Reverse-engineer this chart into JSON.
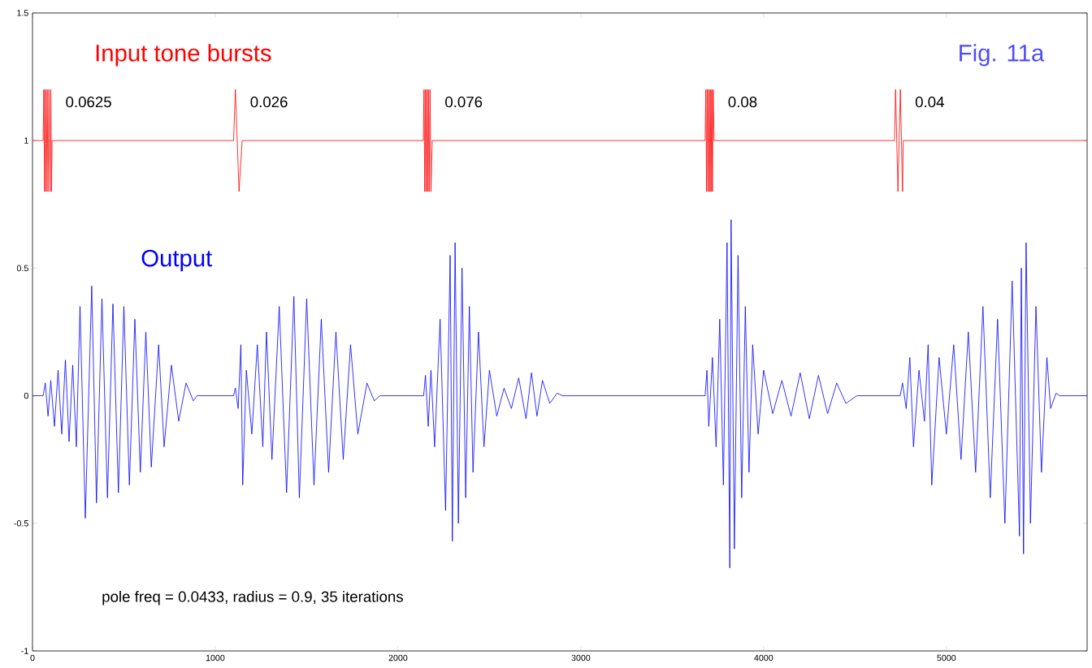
{
  "chart_data": {
    "type": "line",
    "title": "Fig. 11a",
    "xlim": [
      0,
      5770
    ],
    "ylim": [
      -1,
      1.5
    ],
    "xticks": [
      0,
      1000,
      2000,
      3000,
      4000,
      5000
    ],
    "yticks": [
      -1,
      -0.5,
      0,
      0.5,
      1,
      1.5
    ],
    "grid": false,
    "series": [
      {
        "name": "Input tone bursts",
        "color": "#ff0000",
        "x": [
          0,
          58,
          62,
          66,
          70,
          75,
          80,
          85,
          90,
          96,
          100,
          104,
          107,
          1100,
          1110,
          1130,
          1147,
          2138,
          2142,
          2146,
          2150,
          2154,
          2158,
          2162,
          2166,
          2170,
          2175,
          2180,
          2187,
          3680,
          3684,
          3688,
          3692,
          3696,
          3700,
          3704,
          3708,
          3712,
          3716,
          3720,
          3724,
          3729,
          4716,
          4722,
          4735,
          4748,
          4760,
          4764,
          5770
        ],
        "values": [
          1,
          1,
          1.2,
          0.8,
          1.2,
          0.8,
          1.2,
          0.8,
          1.2,
          0.8,
          1.2,
          0.8,
          1,
          1,
          1.2,
          0.8,
          1,
          1,
          1.2,
          0.8,
          1.2,
          0.8,
          1.2,
          0.8,
          1.2,
          0.8,
          1.2,
          0.8,
          1,
          1,
          1.2,
          0.8,
          1.2,
          0.8,
          1.2,
          0.8,
          1.2,
          0.8,
          1.2,
          0.8,
          1.2,
          1,
          1,
          1.2,
          0.8,
          1.2,
          0.8,
          1,
          1
        ]
      },
      {
        "name": "Output",
        "color": "#0000ff",
        "x": [
          0,
          58,
          70,
          85,
          100,
          120,
          140,
          160,
          180,
          200,
          220,
          240,
          260,
          289,
          324,
          350,
          380,
          410,
          440,
          470,
          500,
          530,
          560,
          590,
          620,
          650,
          690,
          720,
          760,
          800,
          840,
          880,
          900,
          1100,
          1110,
          1125,
          1140,
          1150,
          1170,
          1200,
          1230,
          1260,
          1280,
          1310,
          1350,
          1390,
          1430,
          1460,
          1500,
          1540,
          1580,
          1620,
          1660,
          1700,
          1740,
          1780,
          1830,
          1870,
          1900,
          2140,
          2150,
          2165,
          2180,
          2200,
          2230,
          2260,
          2285,
          2297,
          2312,
          2330,
          2350,
          2370,
          2390,
          2410,
          2440,
          2470,
          2500,
          2540,
          2580,
          2620,
          2660,
          2700,
          2730,
          2760,
          2790,
          2830,
          2870,
          2900,
          3680,
          3690,
          3700,
          3720,
          3740,
          3760,
          3780,
          3800,
          3815,
          3822,
          3840,
          3860,
          3880,
          3900,
          3920,
          3940,
          3970,
          4000,
          4050,
          4100,
          4150,
          4200,
          4250,
          4300,
          4350,
          4400,
          4450,
          4510,
          4747,
          4760,
          4780,
          4800,
          4820,
          4850,
          4880,
          4900,
          4920,
          4960,
          5000,
          5040,
          5080,
          5120,
          5160,
          5200,
          5240,
          5280,
          5320,
          5360,
          5400,
          5410,
          5422,
          5436,
          5460,
          5490,
          5520,
          5550,
          5570,
          5600,
          5620,
          5770
        ],
        "values": [
          0,
          0,
          0.05,
          -0.08,
          0.06,
          -0.12,
          0.1,
          -0.15,
          0.14,
          -0.18,
          0.12,
          -0.2,
          0.35,
          -0.48,
          0.43,
          -0.42,
          0.38,
          -0.4,
          0.36,
          -0.38,
          0.35,
          -0.35,
          0.3,
          -0.3,
          0.25,
          -0.28,
          0.2,
          -0.2,
          0.12,
          -0.1,
          0.05,
          -0.02,
          0,
          0,
          0.03,
          -0.05,
          0.2,
          -0.35,
          0.1,
          -0.15,
          0.2,
          -0.2,
          0.25,
          -0.25,
          0.35,
          -0.38,
          0.39,
          -0.4,
          0.38,
          -0.35,
          0.3,
          -0.3,
          0.25,
          -0.25,
          0.2,
          -0.15,
          0.05,
          -0.02,
          0,
          0,
          0.08,
          -0.12,
          0.1,
          -0.2,
          0.3,
          -0.45,
          0.55,
          -0.57,
          0.6,
          -0.5,
          0.5,
          -0.4,
          0.35,
          -0.3,
          0.25,
          -0.2,
          0.1,
          -0.08,
          0.03,
          -0.05,
          0.07,
          -0.09,
          0.09,
          -0.08,
          0.06,
          -0.03,
          0.01,
          0,
          0,
          0.1,
          -0.12,
          0.15,
          -0.2,
          0.3,
          -0.35,
          0.6,
          -0.675,
          0.69,
          -0.6,
          0.55,
          -0.4,
          0.35,
          -0.3,
          0.2,
          -0.15,
          0.1,
          -0.07,
          0.06,
          -0.08,
          0.09,
          -0.09,
          0.08,
          -0.07,
          0.05,
          -0.03,
          0,
          0,
          0.05,
          -0.05,
          0.15,
          -0.2,
          0.1,
          -0.1,
          0.2,
          -0.35,
          0.15,
          -0.15,
          0.2,
          -0.25,
          0.25,
          -0.3,
          0.35,
          -0.4,
          0.3,
          -0.5,
          0.45,
          -0.55,
          0.5,
          -0.62,
          0.6,
          -0.5,
          0.35,
          -0.3,
          0.15,
          -0.05,
          0.01,
          0,
          0
        ]
      }
    ],
    "annotations": [
      {
        "text": "0.0625",
        "x": 100,
        "y": 1.2
      },
      {
        "text": "0.026",
        "x": 1110,
        "y": 1.2
      },
      {
        "text": "0.076",
        "x": 2175,
        "y": 1.2
      },
      {
        "text": "0.08",
        "x": 3724,
        "y": 1.2
      },
      {
        "text": "0.04",
        "x": 4748,
        "y": 1.2
      },
      "pole freq = 0.0433,  radius = 0.9, 35 iterations"
    ]
  }
}
